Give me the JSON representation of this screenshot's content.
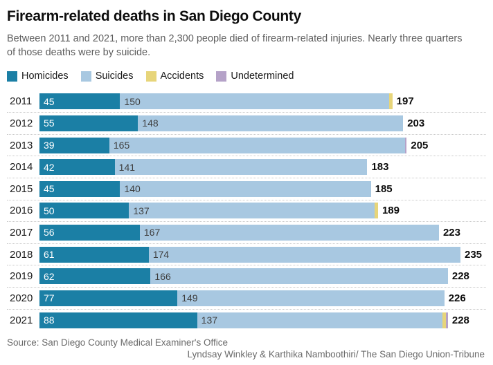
{
  "header": {
    "title": "Firearm-related deaths in San Diego County",
    "subtitle_line1": "Between 2011 and 2021, more than 2,300 people died of firearm-related injuries. Nearly three quarters",
    "subtitle_line2": "of those deaths were by suicide."
  },
  "colors": {
    "homicides": "#1b7fa5",
    "suicides": "#a8c8e1",
    "accidents": "#e7d57a",
    "undetermined": "#b5a2c8",
    "divider": "#c8c8c8",
    "subtitle_gray": "#5d5d5d",
    "footer_gray": "#6a6a6a"
  },
  "legend": {
    "items": [
      {
        "label": "Homicides",
        "color_key": "homicides"
      },
      {
        "label": "Suicides",
        "color_key": "suicides"
      },
      {
        "label": "Accidents",
        "color_key": "accidents"
      },
      {
        "label": "Undetermined",
        "color_key": "undetermined"
      }
    ]
  },
  "chart_data": {
    "type": "bar",
    "orientation": "horizontal",
    "stacked": true,
    "title": "Firearm-related deaths in San Diego County",
    "categories": [
      "2011",
      "2012",
      "2013",
      "2014",
      "2015",
      "2016",
      "2017",
      "2018",
      "2019",
      "2020",
      "2021"
    ],
    "series": [
      {
        "name": "Homicides",
        "color_key": "homicides",
        "values": [
          45,
          55,
          39,
          42,
          45,
          50,
          56,
          61,
          62,
          77,
          88
        ]
      },
      {
        "name": "Suicides",
        "color_key": "suicides",
        "values": [
          150,
          148,
          165,
          141,
          140,
          137,
          167,
          174,
          166,
          149,
          137
        ]
      },
      {
        "name": "Accidents",
        "color_key": "accidents",
        "values": [
          2,
          0,
          0,
          0,
          0,
          2,
          0,
          0,
          0,
          0,
          2
        ]
      },
      {
        "name": "Undetermined",
        "color_key": "undetermined",
        "values": [
          0,
          0,
          1,
          0,
          0,
          0,
          0,
          0,
          0,
          0,
          1
        ]
      }
    ],
    "totals": [
      197,
      203,
      205,
      183,
      185,
      189,
      223,
      235,
      228,
      226,
      228
    ],
    "value_labels_shown": [
      "Homicides",
      "Suicides",
      "totals"
    ],
    "xlim": [
      0,
      235
    ],
    "grid": false,
    "legend_position": "top"
  },
  "footer": {
    "source": "Source: San Diego County Medical Examiner's Office",
    "credit": "Lyndsay Winkley & Karthika Namboothiri/ The San Diego Union-Tribune"
  }
}
